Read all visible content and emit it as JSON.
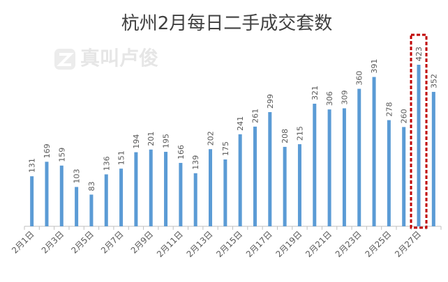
{
  "chart_data": {
    "type": "bar",
    "title": "杭州2月每日二手成交套数",
    "watermark": "真叫卢俊",
    "categories": [
      "2月1日",
      null,
      "2月3日",
      null,
      "2月5日",
      null,
      "2月7日",
      null,
      "2月9日",
      null,
      "2月11日",
      null,
      "2月13日",
      null,
      "2月15日",
      null,
      "2月17日",
      null,
      "2月19日",
      null,
      "2月21日",
      null,
      "2月23日",
      null,
      "2月25日",
      null,
      "2月27日",
      null
    ],
    "values": [
      131,
      169,
      159,
      103,
      83,
      136,
      151,
      194,
      201,
      195,
      166,
      139,
      202,
      175,
      241,
      261,
      299,
      208,
      215,
      321,
      306,
      309,
      360,
      391,
      278,
      260,
      423,
      352
    ],
    "color": "#5b9bd5",
    "highlight_index": 26,
    "highlight_color": "#c00000"
  }
}
